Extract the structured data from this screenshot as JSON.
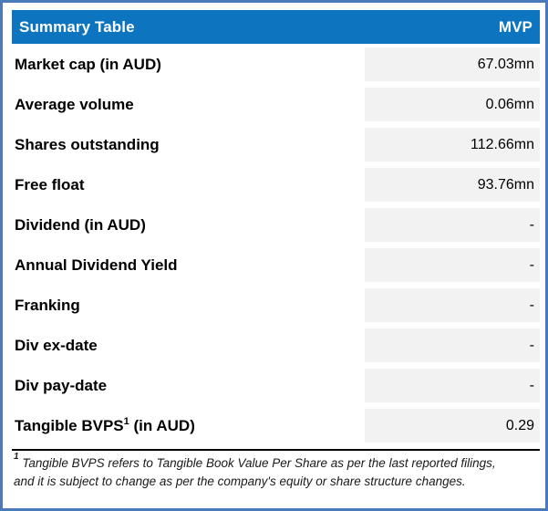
{
  "colors": {
    "header_blue": "#0d74c0",
    "frame_border_blue": "#4a7abc",
    "value_cell_gray": "#f2f2f2",
    "header_text": "#ffffff",
    "body_text": "#000000"
  },
  "header": {
    "title": "Summary Table",
    "ticker": "MVP"
  },
  "rows": [
    {
      "label": "Market cap (in AUD)",
      "value": "67.03mn"
    },
    {
      "label": "Average volume",
      "value": "0.06mn"
    },
    {
      "label": "Shares outstanding",
      "value": "112.66mn"
    },
    {
      "label": "Free float",
      "value": "93.76mn"
    },
    {
      "label": "Dividend (in AUD)",
      "value": "-"
    },
    {
      "label": "Annual Dividend Yield",
      "value": "-"
    },
    {
      "label": "Franking",
      "value": "-"
    },
    {
      "label": "Div ex-date",
      "value": "-"
    },
    {
      "label": "Div pay-date",
      "value": "-"
    },
    {
      "label_pre": "Tangible BVPS",
      "label_sup": "1",
      "label_post": " (in AUD)",
      "value": "0.29"
    }
  ],
  "footnote": {
    "sup": "1",
    "line1": " Tangible BVPS refers to Tangible Book Value Per Share as per the last reported filings,",
    "line2": "and it is subject to change as per the company's equity or share structure changes."
  },
  "chart_data": {
    "type": "table",
    "title": "Summary Table",
    "columns": [
      "Summary Table",
      "MVP"
    ],
    "rows": [
      [
        "Market cap (in AUD)",
        "67.03mn"
      ],
      [
        "Average volume",
        "0.06mn"
      ],
      [
        "Shares outstanding",
        "112.66mn"
      ],
      [
        "Free float",
        "93.76mn"
      ],
      [
        "Dividend (in AUD)",
        "-"
      ],
      [
        "Annual Dividend Yield",
        "-"
      ],
      [
        "Franking",
        "-"
      ],
      [
        "Div ex-date",
        "-"
      ],
      [
        "Div pay-date",
        "-"
      ],
      [
        "Tangible BVPS (in AUD)",
        "0.29"
      ]
    ],
    "footnote": "1 Tangible BVPS refers to Tangible Book Value Per Share as per the last reported filings, and it is subject to change as per the company's equity or share structure changes."
  }
}
